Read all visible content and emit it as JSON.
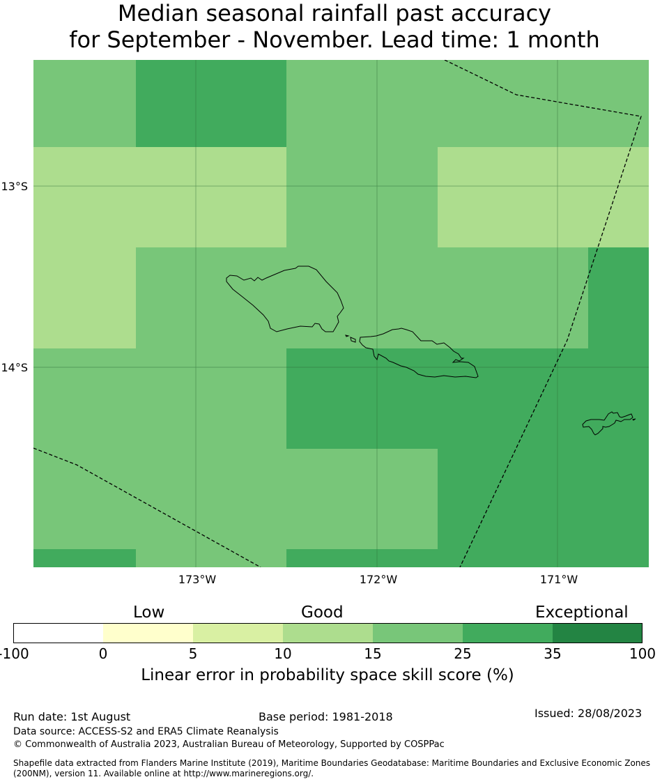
{
  "title": {
    "line1": "Median seasonal rainfall past accuracy",
    "line2": "for September - November. Lead time: 1 month"
  },
  "map": {
    "lat_labels": [
      "13°S",
      "14°S"
    ],
    "lon_labels": [
      "173°W",
      "172°W",
      "171°W"
    ],
    "colors": {
      "c5_10": "#d9f0a3",
      "c10_15": "#addd8e",
      "c15_25": "#78c679",
      "c25_35": "#41ab5d",
      "c35_100": "#238443"
    },
    "skill_grid": [
      [
        "15-25",
        "25-35",
        "25-35",
        "15-25",
        "15-25",
        "15-25",
        "15-25"
      ],
      [
        "10-15",
        "10-15",
        "10-15",
        "15-25",
        "10-15",
        "10-15",
        "10-15"
      ],
      [
        "10-15",
        "15-25",
        "15-25",
        "15-25",
        "15-25",
        "15-25",
        "25-35"
      ],
      [
        "15-25",
        "15-25",
        "15-25",
        "25-35",
        "25-35",
        "25-35",
        "25-35"
      ],
      [
        "15-25",
        "15-25",
        "15-25",
        "15-25",
        "25-35",
        "25-35",
        "25-35"
      ],
      [
        "25-35",
        "15-25",
        "15-25",
        "25-35",
        "25-35",
        "25-35",
        "25-35"
      ]
    ]
  },
  "legend": {
    "categories": {
      "low": "Low",
      "good": "Good",
      "exceptional": "Exceptional"
    },
    "ticks": [
      "-100",
      "0",
      "5",
      "10",
      "15",
      "25",
      "35",
      "100"
    ],
    "bins": [
      {
        "color": "#ffffff"
      },
      {
        "color": "#ffffcc"
      },
      {
        "color": "#d9f0a3"
      },
      {
        "color": "#addd8e"
      },
      {
        "color": "#78c679"
      },
      {
        "color": "#41ab5d"
      },
      {
        "color": "#238443"
      }
    ],
    "label": "Linear error in probability space skill score (%)"
  },
  "footer": {
    "run_date": "Run date: 1st August",
    "base_period": "Base period: 1981-2018",
    "issued": "Issued: 28/08/2023",
    "data_source": "Data source: ACCESS-S2 and ERA5 Climate Reanalysis",
    "copyright": "© Commonwealth of Australia 2023, Australian Bureau of Meteorology, Supported by COSPPac",
    "shapefile_line1": "Shapefile data extracted from Flanders Marine Institute (2019), Maritime Boundaries Geodatabase: Maritime Boundaries and Exclusive Economic Zones",
    "shapefile_line2": "(200NM), version 11. Available online at http://www.marineregions.org/."
  }
}
